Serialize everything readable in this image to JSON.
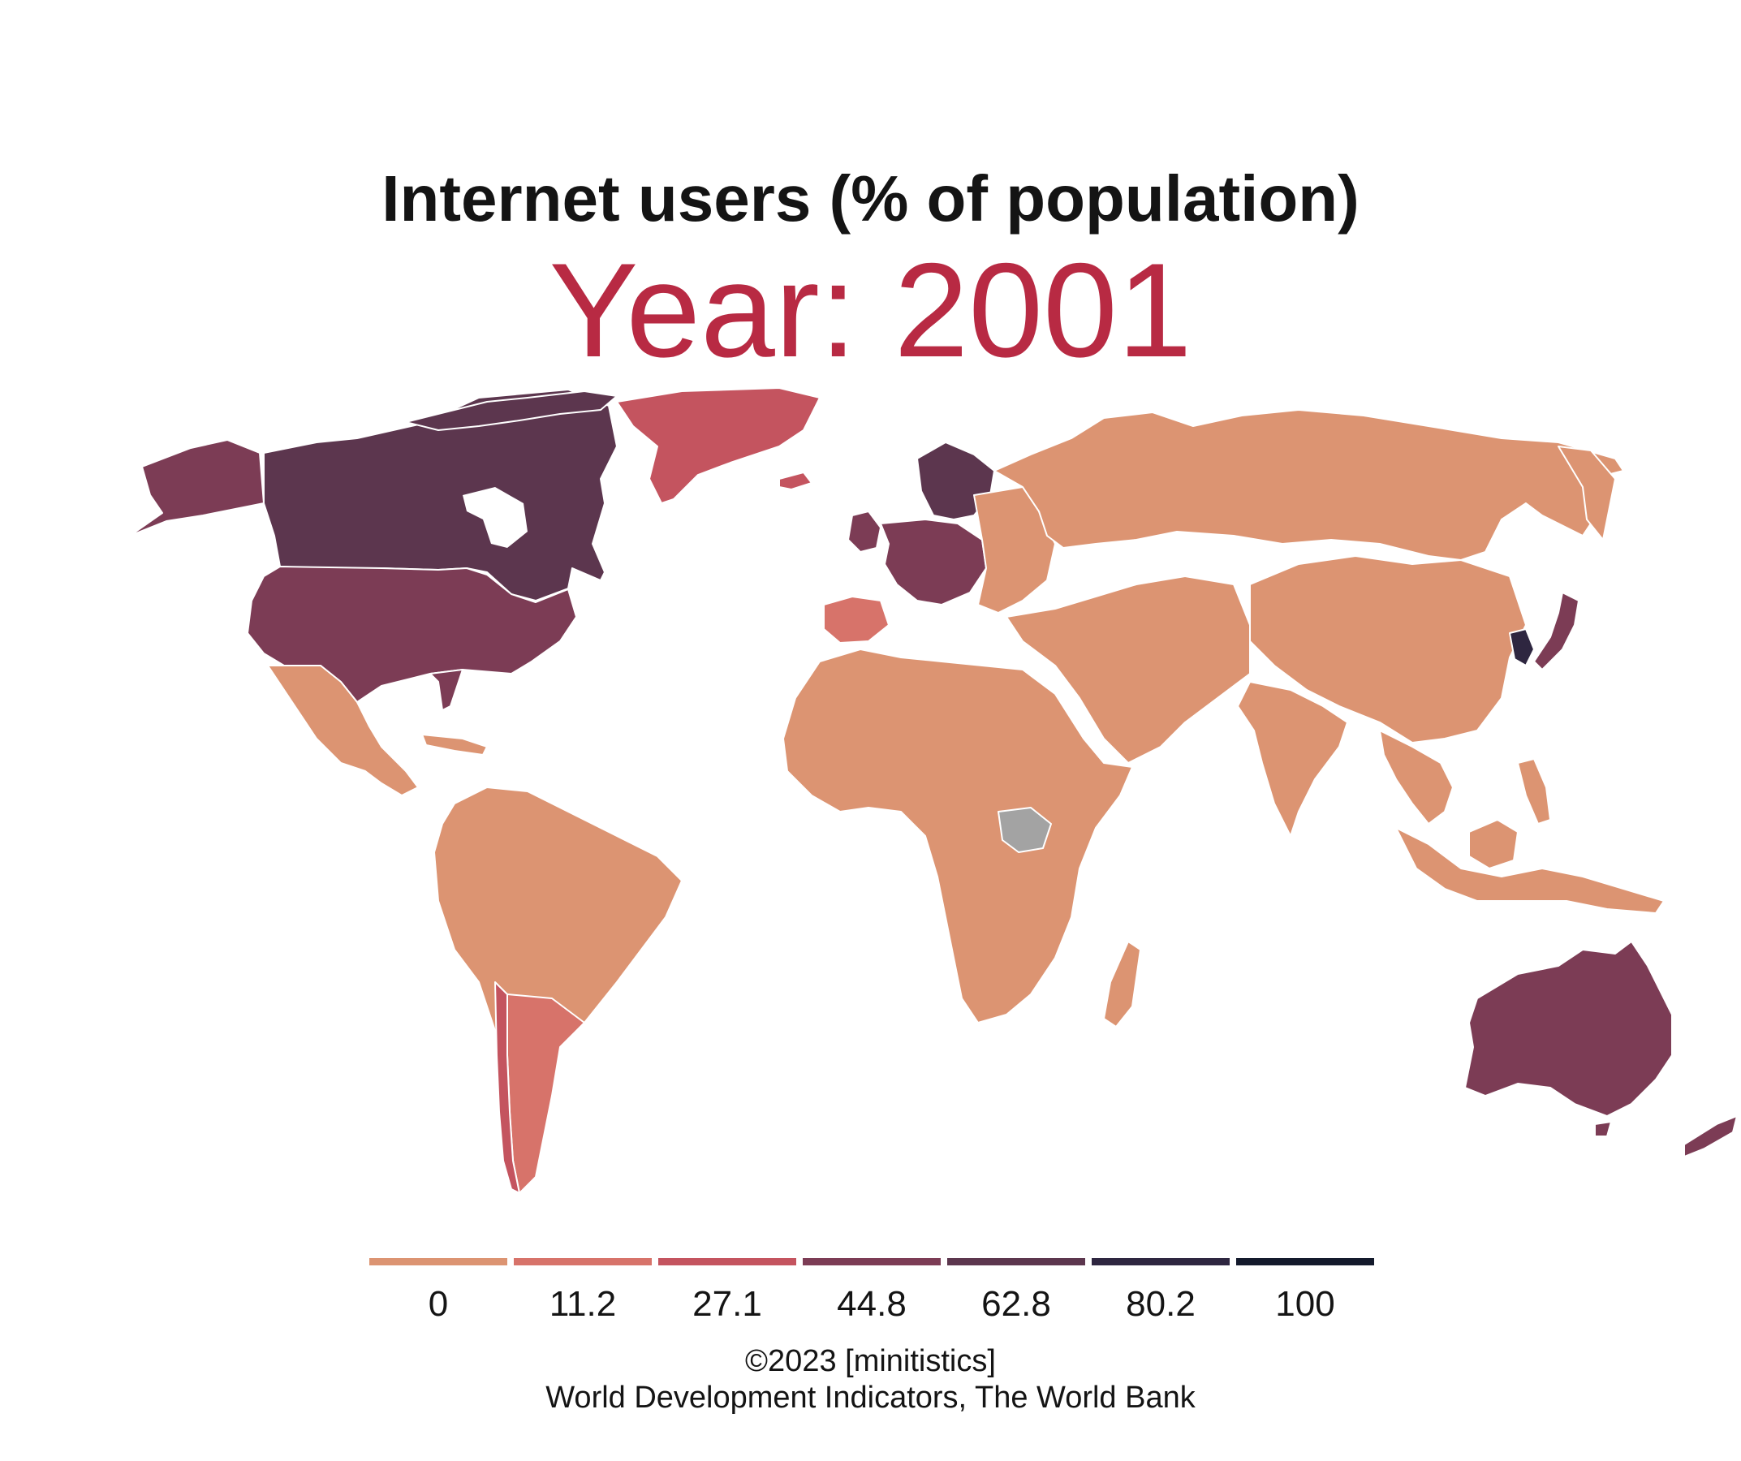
{
  "title": "Internet users (% of population)",
  "subtitle": "Year: 2001",
  "legend": {
    "ticks": [
      "0",
      "11.2",
      "27.1",
      "44.8",
      "62.8",
      "80.2",
      "100"
    ],
    "colors": [
      "#dc9472",
      "#d7736a",
      "#c4545f",
      "#7c3c55",
      "#5c364e",
      "#2e2640",
      "#141a2c"
    ]
  },
  "no_data_color": "#a3a3a3",
  "credit": "©2023 [minitistics]",
  "source": "World Development Indicators, The World Bank"
}
